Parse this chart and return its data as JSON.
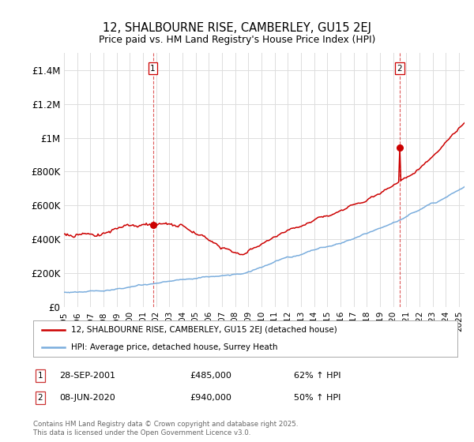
{
  "title": "12, SHALBOURNE RISE, CAMBERLEY, GU15 2EJ",
  "subtitle": "Price paid vs. HM Land Registry's House Price Index (HPI)",
  "ylim": [
    0,
    1500000
  ],
  "yticks": [
    0,
    200000,
    400000,
    600000,
    800000,
    1000000,
    1200000,
    1400000
  ],
  "ytick_labels": [
    "£0",
    "£200K",
    "£400K",
    "£600K",
    "£800K",
    "£1M",
    "£1.2M",
    "£1.4M"
  ],
  "red_color": "#cc0000",
  "blue_color": "#7aaddd",
  "sale1_idx": 81,
  "sale1_value": 485000,
  "sale2_idx": 306,
  "sale2_value": 940000,
  "legend_label1": "12, SHALBOURNE RISE, CAMBERLEY, GU15 2EJ (detached house)",
  "legend_label2": "HPI: Average price, detached house, Surrey Heath",
  "note1_label": "1",
  "note1_date": "28-SEP-2001",
  "note1_price": "£485,000",
  "note1_hpi": "62% ↑ HPI",
  "note2_label": "2",
  "note2_date": "08-JUN-2020",
  "note2_price": "£940,000",
  "note2_hpi": "50% ↑ HPI",
  "footer": "Contains HM Land Registry data © Crown copyright and database right 2025.\nThis data is licensed under the Open Government Licence v3.0.",
  "background_color": "#ffffff",
  "grid_color": "#dddddd",
  "year_start": 1995,
  "year_end": 2026,
  "n_months": 366
}
